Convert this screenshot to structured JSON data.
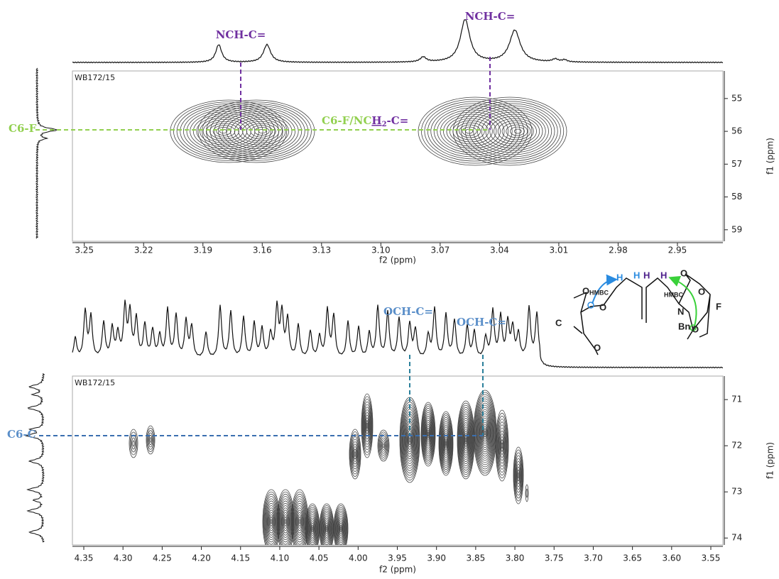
{
  "chart_data": [
    {
      "type": "contour",
      "label": "WB172/15",
      "x_title": "f2 (ppm)",
      "y_title": "f1 (ppm)",
      "xlim": [
        3.256,
        2.927
      ],
      "xticks": [
        3.25,
        3.22,
        3.19,
        3.16,
        3.13,
        {
          "value": 3.1,
          "label": "3.10"
        },
        3.07,
        3.04,
        3.01,
        2.98,
        2.95
      ],
      "ylim": [
        59.35,
        54.16
      ],
      "yticks": [
        55,
        56,
        57,
        58,
        59
      ],
      "annotations": [
        "NCH-C=",
        "NCH-C=",
        "C6-F",
        [
          "C6-F/NC",
          "H",
          "2",
          "-C="
        ]
      ]
    },
    {
      "type": "contour",
      "label": "WB172/15",
      "x_title": "f2 (ppm)",
      "y_title": "f1 (ppm)",
      "xlim": [
        4.3645,
        3.5346
      ],
      "xticks": [
        4.35,
        {
          "value": 4.3,
          "label": "4.30"
        },
        4.25,
        {
          "value": 4.2,
          "label": "4.20"
        },
        4.15,
        {
          "value": 4.1,
          "label": "4.10"
        },
        4.05,
        {
          "value": 4,
          "label": "4.00"
        },
        3.95,
        {
          "value": 3.9,
          "label": "3.90"
        },
        3.85,
        {
          "value": 3.8,
          "label": "3.80"
        },
        3.75,
        {
          "value": 3.7,
          "label": "3.70"
        },
        3.65,
        {
          "value": 3.6,
          "label": "3.60"
        },
        3.55
      ],
      "ylim": [
        74.15,
        70.49
      ],
      "yticks": [
        71,
        72,
        73,
        74
      ],
      "annotations": [
        "OCH-C=",
        "OCH-C=",
        "C6-C"
      ]
    }
  ],
  "structure": {
    "labels": [
      "HMBC",
      "H",
      "H",
      "H",
      "H",
      "HMBC",
      "N",
      "Bn",
      "C",
      "F",
      "O",
      "O",
      "O",
      "O",
      "O",
      "O"
    ]
  }
}
